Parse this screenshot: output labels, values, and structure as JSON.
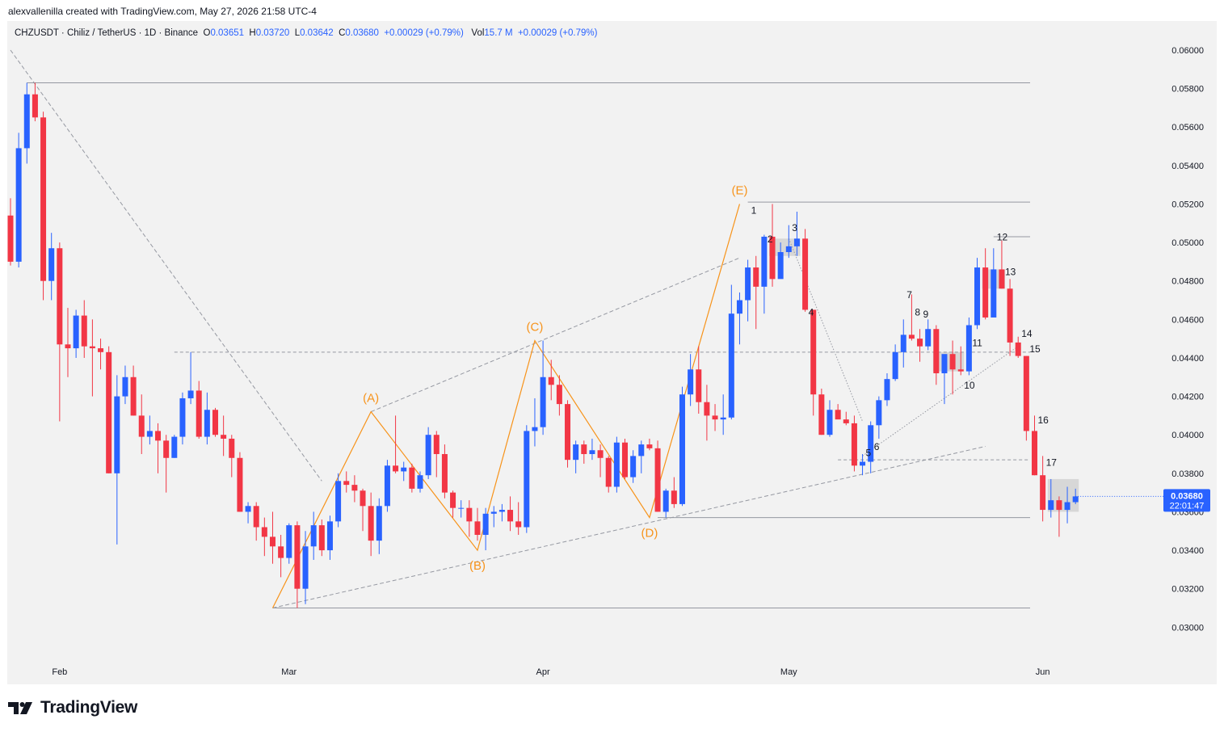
{
  "header": {
    "attribution": "alexvallenilla created with TradingView.com, May 27, 2026 21:58 UTC-4"
  },
  "legend": {
    "symbol": "CHZUSDT · Chiliz / TetherUS · 1D · Binance",
    "o_label": "O",
    "o": "0.03651",
    "h_label": "H",
    "h": "0.03720",
    "l_label": "L",
    "l": "0.03642",
    "c_label": "C",
    "c": "0.03680",
    "change": "+0.00029 (+0.79%)",
    "vol_label": "Vol",
    "vol": "15.7 M",
    "vol_change": "+0.00029 (+0.79%)"
  },
  "footer": {
    "brand": "TradingView"
  },
  "colors": {
    "up": "#2962ff",
    "down": "#f23645",
    "wave": "#f7931a",
    "price_tag": "#2962ff",
    "guide": "#9598a1"
  },
  "chart_data": {
    "type": "candlestick",
    "symbol": "CHZUSDT",
    "ylim": [
      0.029,
      0.0612
    ],
    "y_ticks": [
      "0.03000",
      "0.03200",
      "0.03400",
      "0.03600",
      "0.03800",
      "0.04000",
      "0.04200",
      "0.04400",
      "0.04600",
      "0.04800",
      "0.05000",
      "0.05200",
      "0.05400",
      "0.05600",
      "0.05800",
      "0.06000"
    ],
    "x_labels": [
      {
        "label": "Feb",
        "bar": 6
      },
      {
        "label": "Mar",
        "bar": 34
      },
      {
        "label": "Apr",
        "bar": 65
      },
      {
        "label": "May",
        "bar": 95
      },
      {
        "label": "Jun",
        "bar": 126
      }
    ],
    "last_price": "0.03680",
    "countdown": "22:01:47",
    "ohlc": [
      [
        0.0514,
        0.0523,
        0.0488,
        0.049
      ],
      [
        0.049,
        0.0557,
        0.0487,
        0.0549
      ],
      [
        0.0549,
        0.0583,
        0.0541,
        0.0577
      ],
      [
        0.0577,
        0.0583,
        0.0563,
        0.0565
      ],
      [
        0.0565,
        0.0568,
        0.047,
        0.048
      ],
      [
        0.048,
        0.0505,
        0.047,
        0.0497
      ],
      [
        0.0497,
        0.05,
        0.0407,
        0.0447
      ],
      [
        0.0447,
        0.0466,
        0.043,
        0.0445
      ],
      [
        0.0445,
        0.0465,
        0.044,
        0.0462
      ],
      [
        0.0462,
        0.047,
        0.044,
        0.0446
      ],
      [
        0.0446,
        0.046,
        0.042,
        0.0445
      ],
      [
        0.0445,
        0.045,
        0.0434,
        0.0443
      ],
      [
        0.0443,
        0.0446,
        0.038,
        0.038
      ],
      [
        0.038,
        0.0431,
        0.0343,
        0.042
      ],
      [
        0.042,
        0.0436,
        0.0416,
        0.043
      ],
      [
        0.043,
        0.0436,
        0.041,
        0.041
      ],
      [
        0.041,
        0.0421,
        0.039,
        0.0399
      ],
      [
        0.0399,
        0.041,
        0.0395,
        0.0402
      ],
      [
        0.0402,
        0.0406,
        0.038,
        0.0397
      ],
      [
        0.0397,
        0.04,
        0.037,
        0.0388
      ],
      [
        0.0388,
        0.04,
        0.0388,
        0.0399
      ],
      [
        0.0399,
        0.0422,
        0.0395,
        0.0419
      ],
      [
        0.0419,
        0.0443,
        0.0416,
        0.0423
      ],
      [
        0.0423,
        0.0428,
        0.0398,
        0.0399
      ],
      [
        0.0399,
        0.0422,
        0.0395,
        0.0413
      ],
      [
        0.0413,
        0.0414,
        0.0399,
        0.04
      ],
      [
        0.04,
        0.041,
        0.0389,
        0.0398
      ],
      [
        0.0398,
        0.04,
        0.0378,
        0.0388
      ],
      [
        0.0388,
        0.0391,
        0.036,
        0.036
      ],
      [
        0.036,
        0.0365,
        0.0354,
        0.0363
      ],
      [
        0.0363,
        0.0365,
        0.0345,
        0.0352
      ],
      [
        0.0352,
        0.0357,
        0.0337,
        0.0347
      ],
      [
        0.0347,
        0.036,
        0.0333,
        0.0342
      ],
      [
        0.0342,
        0.0348,
        0.0326,
        0.0336
      ],
      [
        0.0336,
        0.0354,
        0.0333,
        0.0353
      ],
      [
        0.0353,
        0.0355,
        0.031,
        0.032
      ],
      [
        0.032,
        0.035,
        0.0312,
        0.0342
      ],
      [
        0.0342,
        0.036,
        0.0335,
        0.0353
      ],
      [
        0.0353,
        0.0356,
        0.0337,
        0.034
      ],
      [
        0.034,
        0.0358,
        0.0335,
        0.0355
      ],
      [
        0.0355,
        0.038,
        0.0352,
        0.0376
      ],
      [
        0.0376,
        0.0381,
        0.037,
        0.0374
      ],
      [
        0.0374,
        0.0379,
        0.0365,
        0.0371
      ],
      [
        0.0371,
        0.0372,
        0.035,
        0.0363
      ],
      [
        0.0363,
        0.037,
        0.0337,
        0.0345
      ],
      [
        0.0345,
        0.0367,
        0.0338,
        0.0363
      ],
      [
        0.0363,
        0.0387,
        0.036,
        0.0384
      ],
      [
        0.0384,
        0.041,
        0.038,
        0.0381
      ],
      [
        0.0381,
        0.0386,
        0.0376,
        0.0383
      ],
      [
        0.0383,
        0.0385,
        0.037,
        0.0372
      ],
      [
        0.0372,
        0.0381,
        0.037,
        0.0379
      ],
      [
        0.0379,
        0.0404,
        0.0377,
        0.04
      ],
      [
        0.04,
        0.0402,
        0.0378,
        0.039
      ],
      [
        0.039,
        0.0395,
        0.0367,
        0.037
      ],
      [
        0.037,
        0.0371,
        0.0357,
        0.0362
      ],
      [
        0.0362,
        0.0366,
        0.0357,
        0.0362
      ],
      [
        0.0362,
        0.0366,
        0.0347,
        0.0355
      ],
      [
        0.0355,
        0.0362,
        0.0345,
        0.0348
      ],
      [
        0.0348,
        0.0362,
        0.034,
        0.0359
      ],
      [
        0.0359,
        0.0363,
        0.0352,
        0.036
      ],
      [
        0.036,
        0.0364,
        0.0355,
        0.0361
      ],
      [
        0.0361,
        0.0368,
        0.035,
        0.0355
      ],
      [
        0.0355,
        0.0365,
        0.0348,
        0.0352
      ],
      [
        0.0352,
        0.0405,
        0.0349,
        0.0402
      ],
      [
        0.0402,
        0.0419,
        0.0394,
        0.0404
      ],
      [
        0.0404,
        0.0449,
        0.04,
        0.043
      ],
      [
        0.043,
        0.0439,
        0.0418,
        0.0426
      ],
      [
        0.0426,
        0.0431,
        0.041,
        0.0416
      ],
      [
        0.0416,
        0.0418,
        0.0383,
        0.0387
      ],
      [
        0.0387,
        0.0397,
        0.038,
        0.0395
      ],
      [
        0.0395,
        0.0397,
        0.0385,
        0.039
      ],
      [
        0.039,
        0.0398,
        0.0387,
        0.0392
      ],
      [
        0.0392,
        0.0395,
        0.0378,
        0.0388
      ],
      [
        0.0388,
        0.0389,
        0.037,
        0.0373
      ],
      [
        0.0373,
        0.0399,
        0.037,
        0.0396
      ],
      [
        0.0396,
        0.0398,
        0.0377,
        0.0378
      ],
      [
        0.0378,
        0.0392,
        0.0375,
        0.0389
      ],
      [
        0.0389,
        0.0397,
        0.038,
        0.0395
      ],
      [
        0.0395,
        0.0398,
        0.0392,
        0.0393
      ],
      [
        0.0393,
        0.0397,
        0.036,
        0.036
      ],
      [
        0.036,
        0.0372,
        0.0357,
        0.0371
      ],
      [
        0.0371,
        0.0378,
        0.0362,
        0.0364
      ],
      [
        0.0364,
        0.0425,
        0.0363,
        0.0421
      ],
      [
        0.0421,
        0.0442,
        0.0415,
        0.0434
      ],
      [
        0.0434,
        0.0446,
        0.0411,
        0.0417
      ],
      [
        0.0417,
        0.0426,
        0.0397,
        0.041
      ],
      [
        0.041,
        0.0416,
        0.0402,
        0.0408
      ],
      [
        0.0408,
        0.0421,
        0.04,
        0.0409
      ],
      [
        0.0409,
        0.0478,
        0.0408,
        0.0463
      ],
      [
        0.0463,
        0.0474,
        0.0447,
        0.047
      ],
      [
        0.047,
        0.0491,
        0.0459,
        0.0487
      ],
      [
        0.0487,
        0.0493,
        0.0455,
        0.0477
      ],
      [
        0.0477,
        0.0504,
        0.0463,
        0.0503
      ],
      [
        0.0503,
        0.052,
        0.0477,
        0.0481
      ],
      [
        0.0481,
        0.05,
        0.0482,
        0.0495
      ],
      [
        0.0495,
        0.0509,
        0.0492,
        0.0498
      ],
      [
        0.0498,
        0.0516,
        0.0493,
        0.0502
      ],
      [
        0.0502,
        0.0507,
        0.0464,
        0.0465
      ],
      [
        0.0465,
        0.0465,
        0.041,
        0.0421
      ],
      [
        0.0421,
        0.0424,
        0.04,
        0.04
      ],
      [
        0.04,
        0.0418,
        0.0399,
        0.0413
      ],
      [
        0.0413,
        0.0416,
        0.041,
        0.0408
      ],
      [
        0.0408,
        0.0412,
        0.0405,
        0.0406
      ],
      [
        0.0406,
        0.041,
        0.0381,
        0.0384
      ],
      [
        0.0384,
        0.039,
        0.0379,
        0.0386
      ],
      [
        0.0386,
        0.0407,
        0.038,
        0.0405
      ],
      [
        0.0405,
        0.042,
        0.0398,
        0.0418
      ],
      [
        0.0418,
        0.0432,
        0.0415,
        0.0429
      ],
      [
        0.0429,
        0.0447,
        0.0428,
        0.0443
      ],
      [
        0.0443,
        0.046,
        0.0435,
        0.0452
      ],
      [
        0.0452,
        0.0473,
        0.0449,
        0.045
      ],
      [
        0.045,
        0.0455,
        0.0438,
        0.0446
      ],
      [
        0.0446,
        0.046,
        0.0444,
        0.0455
      ],
      [
        0.0455,
        0.0457,
        0.0426,
        0.0432
      ],
      [
        0.0432,
        0.0441,
        0.0416,
        0.0442
      ],
      [
        0.0442,
        0.0449,
        0.0421,
        0.0434
      ],
      [
        0.0434,
        0.0446,
        0.0431,
        0.0433
      ],
      [
        0.0433,
        0.0461,
        0.0431,
        0.0457
      ],
      [
        0.0457,
        0.0492,
        0.0455,
        0.0487
      ],
      [
        0.0487,
        0.0497,
        0.046,
        0.0461
      ],
      [
        0.0461,
        0.0497,
        0.0464,
        0.0486
      ],
      [
        0.0486,
        0.0501,
        0.0476,
        0.0476
      ],
      [
        0.0476,
        0.0481,
        0.0441,
        0.0448
      ],
      [
        0.0448,
        0.0451,
        0.044,
        0.0441
      ],
      [
        0.0441,
        0.0441,
        0.0397,
        0.0402
      ],
      [
        0.0402,
        0.041,
        0.0379,
        0.0379
      ],
      [
        0.0379,
        0.0389,
        0.0355,
        0.0361
      ],
      [
        0.0361,
        0.0377,
        0.0357,
        0.0366
      ],
      [
        0.0366,
        0.0368,
        0.0347,
        0.0361
      ],
      [
        0.0361,
        0.0373,
        0.0354,
        0.0365
      ],
      [
        0.0365,
        0.0372,
        0.0364,
        0.0368
      ]
    ],
    "horizontal_levels": [
      {
        "price": 0.0583,
        "style": "solid"
      },
      {
        "price": 0.0521,
        "style": "solid"
      },
      {
        "price": 0.0503,
        "style": "solid"
      },
      {
        "price": 0.0443,
        "style": "dashed"
      },
      {
        "price": 0.0387,
        "style": "dashed"
      },
      {
        "price": 0.0357,
        "style": "solid"
      },
      {
        "price": 0.031,
        "style": "solid"
      }
    ],
    "wave_labels": [
      {
        "label": "(A)",
        "bar": 44,
        "price": 0.0412,
        "pos": "above"
      },
      {
        "label": "(B)",
        "bar": 57,
        "price": 0.034,
        "pos": "below"
      },
      {
        "label": "(C)",
        "bar": 64,
        "price": 0.0449,
        "pos": "above"
      },
      {
        "label": "(D)",
        "bar": 78,
        "price": 0.0357,
        "pos": "below"
      },
      {
        "label": "(E)",
        "bar": 89,
        "price": 0.052,
        "pos": "above"
      }
    ],
    "wave_path_start": {
      "bar": 32,
      "price": 0.031
    },
    "count_labels": [
      {
        "label": "1",
        "bar": 90,
        "price": 0.0515
      },
      {
        "label": "2",
        "bar": 92,
        "price": 0.05
      },
      {
        "label": "3",
        "bar": 95,
        "price": 0.0506
      },
      {
        "label": "4",
        "bar": 97,
        "price": 0.0462
      },
      {
        "label": "5",
        "bar": 104,
        "price": 0.0389
      },
      {
        "label": "6",
        "bar": 105,
        "price": 0.0392
      },
      {
        "label": "7",
        "bar": 109,
        "price": 0.0471
      },
      {
        "label": "8",
        "bar": 110,
        "price": 0.0462
      },
      {
        "label": "9",
        "bar": 111,
        "price": 0.0461
      },
      {
        "label": "10",
        "bar": 116,
        "price": 0.0424
      },
      {
        "label": "11",
        "bar": 117,
        "price": 0.0446
      },
      {
        "label": "12",
        "bar": 120,
        "price": 0.0501
      },
      {
        "label": "13",
        "bar": 121,
        "price": 0.0483
      },
      {
        "label": "14",
        "bar": 123,
        "price": 0.0451
      },
      {
        "label": "15",
        "bar": 124,
        "price": 0.0443
      },
      {
        "label": "16",
        "bar": 125,
        "price": 0.0406
      },
      {
        "label": "17",
        "bar": 126,
        "price": 0.0384
      }
    ]
  }
}
